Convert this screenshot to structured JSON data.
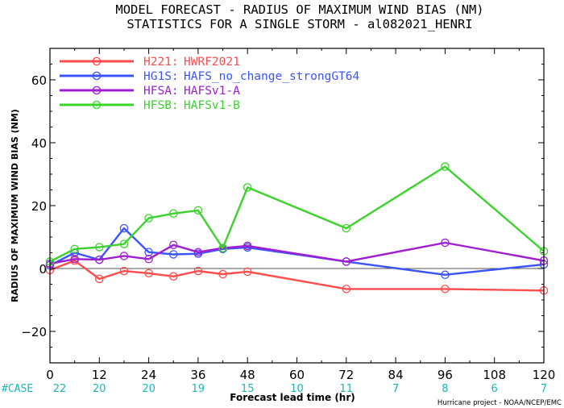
{
  "chart_data": {
    "type": "line",
    "title_lines": [
      "MODEL FORECAST - RADIUS OF MAXIMUM WIND BIAS (NM)",
      "STATISTICS FOR A SINGLE STORM - al082021_HENRI"
    ],
    "xlabel": "Forecast lead time (hr)",
    "ylabel": "RADIUS OF MAXIMUM WIND BIAS (NM)",
    "credit": "Hurricane project - NOAA/NCEP/EMC",
    "xlim": [
      0,
      120
    ],
    "ylim": [
      -30,
      70
    ],
    "xticks": [
      0,
      12,
      24,
      36,
      48,
      60,
      72,
      84,
      96,
      108,
      120
    ],
    "yticks": [
      -20,
      0,
      20,
      40,
      60
    ],
    "reference_line_y": 0,
    "legend_position": "top-left",
    "cases": {
      "label": "#CASE",
      "x": [
        0,
        12,
        24,
        36,
        48,
        60,
        72,
        84,
        96,
        108,
        120
      ],
      "values": [
        22,
        20,
        20,
        19,
        15,
        10,
        11,
        7,
        8,
        6,
        7
      ]
    },
    "series": [
      {
        "code": "H221:",
        "name": "HWRF2021",
        "color": "#ff4c4c",
        "x": [
          0,
          6,
          12,
          18,
          24,
          30,
          36,
          42,
          48,
          72,
          96,
          120
        ],
        "y": [
          -0.5,
          2.5,
          -3.3,
          -0.8,
          -1.5,
          -2.5,
          -0.8,
          -1.8,
          -1.0,
          -6.5,
          -6.5,
          -7.0
        ]
      },
      {
        "code": "HG1S:",
        "name": "HAFS_no_change_strongGT64",
        "color": "#3c54ff",
        "x": [
          0,
          6,
          12,
          18,
          24,
          30,
          36,
          42,
          48,
          72,
          96,
          120
        ],
        "y": [
          1.0,
          5.0,
          2.8,
          12.8,
          5.2,
          4.5,
          4.7,
          6.2,
          6.7,
          2.2,
          -2.0,
          1.3
        ]
      },
      {
        "code": "HFSA:",
        "name": "HAFSv1-A",
        "color": "#a01ed2",
        "x": [
          0,
          6,
          12,
          18,
          24,
          30,
          36,
          42,
          48,
          72,
          96,
          120
        ],
        "y": [
          1.5,
          3.0,
          2.8,
          4.0,
          3.0,
          7.5,
          5.2,
          6.5,
          7.2,
          2.2,
          8.2,
          2.5
        ]
      },
      {
        "code": "HFSB:",
        "name": "HAFSv1-B",
        "color": "#3cd22c",
        "x": [
          0,
          6,
          12,
          18,
          24,
          30,
          36,
          42,
          48,
          72,
          96,
          120
        ],
        "y": [
          2.2,
          6.2,
          6.8,
          7.8,
          16.0,
          17.5,
          18.5,
          6.5,
          25.8,
          12.8,
          32.4,
          5.5
        ]
      }
    ]
  }
}
